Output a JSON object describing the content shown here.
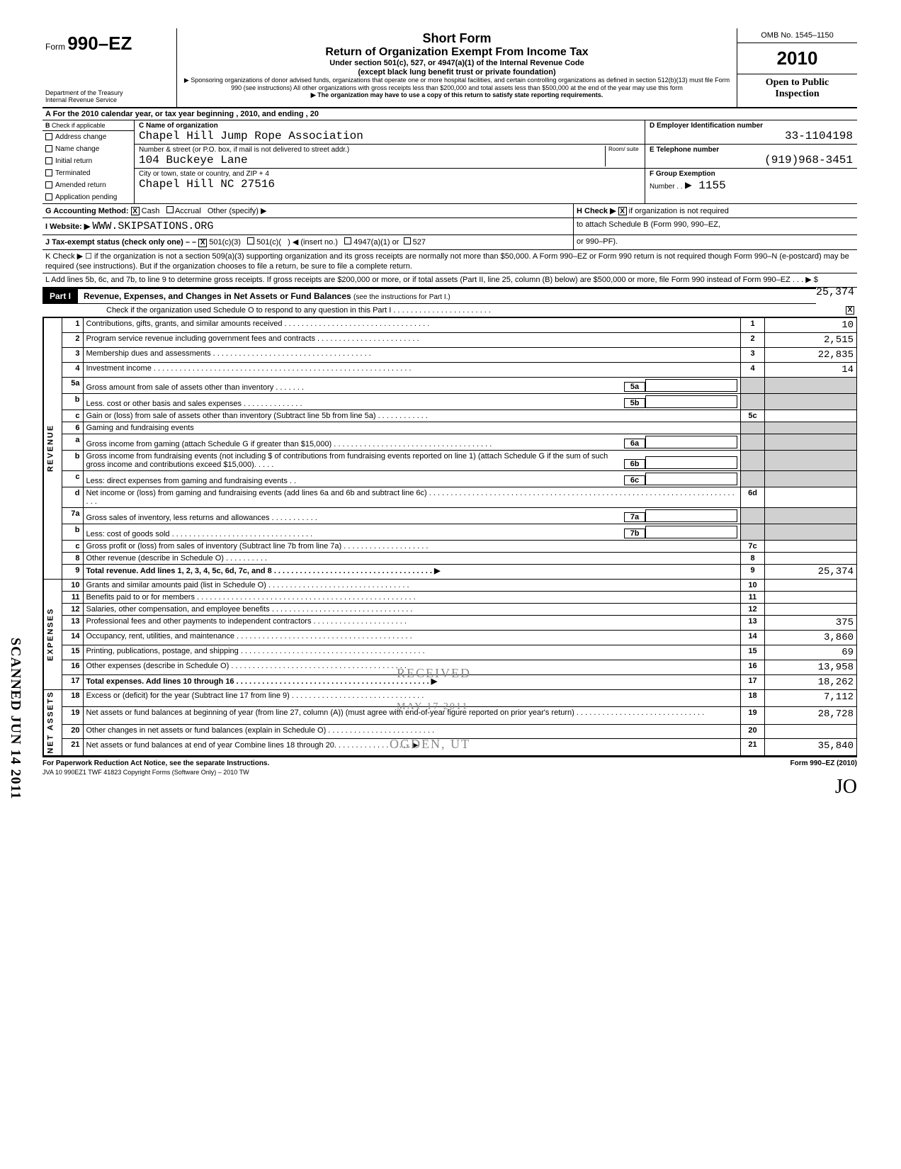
{
  "header": {
    "form_prefix": "Form",
    "form_number": "990–EZ",
    "dept1": "Department of the Treasury",
    "dept2": "Internal Revenue Service",
    "title1": "Short Form",
    "title2": "Return of Organization Exempt From Income Tax",
    "subtitle1": "Under section 501(c), 527, or 4947(a)(1) of the Internal Revenue Code",
    "subtitle2": "(except black lung benefit trust or private foundation)",
    "note1": "▶ Sponsoring organizations of donor advised funds, organizations that operate one or more hospital facilities, and certain controlling organizations as defined in section 512(b)(13) must file Form 990 (see instructions) All other organizations with gross receipts less than $200,000 and total assets less than $500,000 at the end of the year may use this form",
    "note2": "▶ The organization may have to use a copy of this return to satisfy state reporting requirements.",
    "omb": "OMB No. 1545–1150",
    "year": "2010",
    "open1": "Open to Public",
    "open2": "Inspection"
  },
  "rowA": "A  For the 2010 calendar year, or tax year beginning                                          , 2010, and ending                                        , 20",
  "colB": {
    "hdr1": "B",
    "hdr2": "Check if applicable",
    "items": [
      "Address change",
      "Name change",
      "Initial return",
      "Terminated",
      "Amended return",
      "Application pending"
    ]
  },
  "colC": {
    "name_lbl": "C  Name of organization",
    "name_val": "Chapel Hill Jump Rope Association",
    "addr_lbl": "Number & street (or P.O. box, if mail is not delivered to street addr.)",
    "room_lbl": "Room/ suite",
    "addr_val": "104 Buckeye Lane",
    "city_lbl": "City or town, state or country, and ZIP + 4",
    "city_val": "Chapel Hill  NC  27516"
  },
  "colDEF": {
    "d_lbl": "D   Employer Identification number",
    "d_val": "33-1104198",
    "e_lbl": "E   Telephone number",
    "e_val": "(919)968-3451",
    "f_lbl": "F   Group Exemption",
    "f_lbl2": "Number . .",
    "f_val": "▶ 1155"
  },
  "lineG": {
    "label": "G  Accounting Method:",
    "cash": "Cash",
    "accrual": "Accrual",
    "other": "Other (specify) ▶",
    "h_label": "H   Check ▶",
    "h_text": "if organization is not required"
  },
  "lineI": {
    "label": "I   Website: ▶",
    "val": "WWW.SKIPSATIONS.ORG",
    "h_text2": "to attach Schedule B (Form 990, 990–EZ,"
  },
  "lineJ": {
    "label": "J   Tax-exempt status (check only one) – –",
    "opt1": "501(c)(3)",
    "opt2": "501(c)(",
    "opt2b": ") ◀ (insert no.)",
    "opt3": "4947(a)(1) or",
    "opt4": "527",
    "h_text3": "or 990–PF)."
  },
  "lineK": "K  Check ▶ ☐ if the organization is not a section 509(a)(3) supporting organization and its gross receipts are normally not more than $50,000. A Form 990–EZ or Form 990 return is not required though Form 990–N (e-postcard) may be required (see instructions). But if the organization chooses to file a return, be sure to file a complete return.",
  "lineL": {
    "text": "L   Add lines 5b, 6c, and 7b, to line 9 to determine gross receipts. If gross receipts are $200,000 or more, or if total assets (Part II, line 25, column (B) below) are $500,000 or more, file Form 990 instead of Form 990–EZ . . .  ▶ $",
    "val": "25,374"
  },
  "part1": {
    "tab": "Part I",
    "title": "Revenue, Expenses, and Changes in Net Assets or Fund Balances",
    "sub": "(see the instructions for Part I.)",
    "check_line": "Check if the organization used Schedule O to respond to any question in this Part I  .    . . . . .  . . . . . . . . . . . . . . . . ."
  },
  "sides": {
    "rev": "REVENUE",
    "exp": "EXPENSES",
    "net": "NET ASSETS"
  },
  "rows": [
    {
      "n": "1",
      "d": "Contributions, gifts, grants, and similar amounts received . . . . . . . . . . . . . . . . . . . . . . . . . . . . . . . . . .",
      "box": "1",
      "amt": "10"
    },
    {
      "n": "2",
      "d": "Program service revenue including government fees and contracts . . . . . . . .  . . . . . . . . . . . . . . . .",
      "box": "2",
      "amt": "2,515"
    },
    {
      "n": "3",
      "d": "Membership dues and assessments . . . . . . . . . . . . . . .  . . .  . . . .  . . .    . . . . . . .   . . . . .",
      "box": "3",
      "amt": "22,835"
    },
    {
      "n": "4",
      "d": "Investment income . . . . . . . . . . . . . . . . . . . . .  . . .   . . . . . . . . . . . . . . . . . . . . . . . . . . . . . . . . . . . .",
      "box": "4",
      "amt": "14"
    },
    {
      "n": "5a",
      "d": "Gross amount from sale of assets other than inventory . . .    .  .  .  .",
      "ibox": "5a"
    },
    {
      "n": "b",
      "d": "Less. cost or other basis and sales expenses . . .   . .   . . . . . . . . .",
      "ibox": "5b"
    },
    {
      "n": "c",
      "d": "Gain or (loss) from sale of assets other than inventory (Subtract line 5b from line 5a) . . . . .  . . . . . . .",
      "box": "5c",
      "amt": ""
    },
    {
      "n": "6",
      "d": "Gaming and fundraising events"
    },
    {
      "n": "a",
      "d": "Gross income from gaming (attach Schedule G if greater than $15,000) . . . . . . . . . . . . . . . . . . . .    .    . . . . . . . . . . . . . . . .",
      "ibox": "6a"
    },
    {
      "n": "b",
      "d": "Gross income from fundraising events (not including $                         of contributions from fundraising events reported on line 1) (attach Schedule G if the sum of such gross income and contributions exceed $15,000). .  . . .",
      "ibox": "6b"
    },
    {
      "n": "c",
      "d": "Less: direct expenses from gaming and fundraising events .       .",
      "ibox": "6c"
    },
    {
      "n": "d",
      "d": "Net income or (loss) from gaming and fundraising events (add lines 6a and 6b and subtract line 6c) . . . . . . . . . . . . . . . . . . . . . . . . . . . . .  . . . . . . . . . . . . . . . . . . . . . . . . . . . . . . . . . . . . . . . . . . . . .",
      "box": "6d",
      "amt": ""
    },
    {
      "n": "7a",
      "d": "Gross sales of inventory, less returns and allowances . . . . . . .  . . .   .",
      "ibox": "7a"
    },
    {
      "n": "b",
      "d": "Less: cost of goods sold . . . . . . . . . . . . . . . . . . . . . . . . . . . . . . .  . .",
      "ibox": "7b"
    },
    {
      "n": "c",
      "d": "Gross profit or (loss) from sales of inventory (Subtract line 7b from line 7a) . . . .  . . . . . . . . . . . . . . . .",
      "box": "7c",
      "amt": ""
    },
    {
      "n": "8",
      "d": "Other revenue (describe in Schedule O) . . . . . . . . . .",
      "box": "8",
      "amt": ""
    },
    {
      "n": "9",
      "d": "Total revenue. Add lines 1, 2, 3, 4, 5c, 6d, 7c, and 8 . . . . . . . . . . . . . . . . . . . . . . . . . . . . . . . . . . . . .  ▶",
      "box": "9",
      "amt": "25,374",
      "bold": true
    },
    {
      "n": "10",
      "d": "Grants and similar amounts paid (list in Schedule O)  . . . . . . . . . . . . . . . . . . . . . . . . . .   . . . . . . .",
      "box": "10",
      "amt": ""
    },
    {
      "n": "11",
      "d": "Benefits paid to or for members . . . . . .  . .  . . . .   . . . . . . . . . . . . . . . . . . . . . . . . . . . . . . . . . . . . . . .",
      "box": "11",
      "amt": ""
    },
    {
      "n": "12",
      "d": "Salaries, other compensation, and employee benefits  . . . . . . . . . . . . . . . . . . . . . . . .  . . . . . . . . .",
      "box": "12",
      "amt": ""
    },
    {
      "n": "13",
      "d": "Professional fees and other payments to independent contractors . . . . . . . . . . . . . . .   . . . . . . .",
      "box": "13",
      "amt": "375"
    },
    {
      "n": "14",
      "d": "Occupancy, rent, utilities, and maintenance . . . . . . . . . . . . . . . . . . . . . . . . . . . . . . . . .   . . .  . .  . . .",
      "box": "14",
      "amt": "3,860"
    },
    {
      "n": "15",
      "d": "Printing, publications, postage, and shipping . . . . . . . . . . . . . . . . . . . .  . . . . . . . . . . . . . . . . . . . . . . .",
      "box": "15",
      "amt": "69"
    },
    {
      "n": "16",
      "d": "Other expenses (describe in Schedule O) . . . . . . . . . . . . . . . . . . . .  . . . . . . .  . . . . . . . . . . . . . .",
      "box": "16",
      "amt": "13,958"
    },
    {
      "n": "17",
      "d": "Total expenses. Add lines 10 through 16 . . . . . . . . . . . . . . . . . . . . . . . . . . . . . . . . . . . . . . . . . . . . .  ▶",
      "box": "17",
      "amt": "18,262",
      "bold": true
    },
    {
      "n": "18",
      "d": "Excess or (deficit) for the year (Subtract line 17 from line 9) . . . . . . . . . . . . . . . . . . . . . . . . . . . . . . .",
      "box": "18",
      "amt": "7,112"
    },
    {
      "n": "19",
      "d": "Net assets or fund balances at beginning of year (from line 27, column (A)) (must agree with end-of-year figure reported on prior year's return) .  . . .   .  . . . . . . . .   . . . . . . . . . . . . . . . . .",
      "box": "19",
      "amt": "28,728"
    },
    {
      "n": "20",
      "d": "Other changes in net assets or fund balances (explain in Schedule O) . . . . . . . . . . . . . . . . . . . . . . . . .",
      "box": "20",
      "amt": ""
    },
    {
      "n": "21",
      "d": "Net assets or fund balances at end of year  Combine lines 18 through 20.  . . . . .  . . . . . . . . . . . .  ▶",
      "box": "21",
      "amt": "35,840"
    }
  ],
  "stamps": {
    "received": "RECEIVED",
    "date": "MAY 17 2011",
    "ogden": "OGDEN, UT",
    "scanned": "SCANNED JUN 14 2011"
  },
  "footer": {
    "left": "For Paperwork Reduction Act Notice, see the separate Instructions.",
    "mid": "JVA      10  990EZ1      TWF 41823      Copyright Forms (Software Only) – 2010 TW",
    "right": "Form 990–EZ (2010)"
  },
  "colors": {
    "text": "#000000",
    "bg": "#ffffff",
    "shade": "#d0d0d0",
    "stamp": "#888888"
  }
}
